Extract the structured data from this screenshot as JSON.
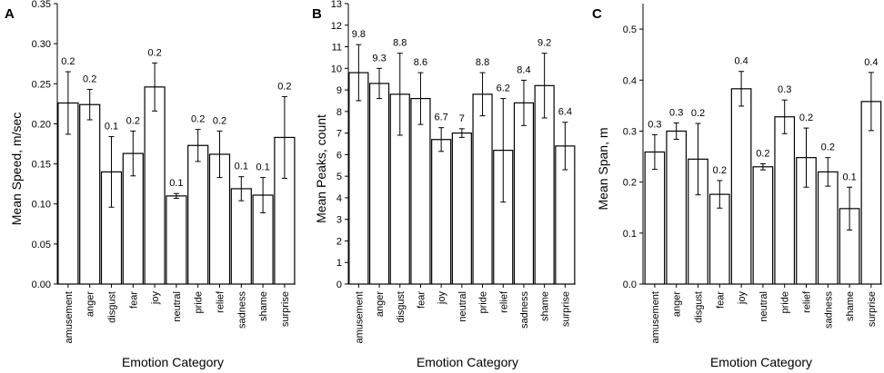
{
  "chart_data": [
    {
      "type": "bar",
      "panel_label": "A",
      "title": "",
      "xlabel": "Emotion Category",
      "ylabel": "Mean Speed, m/sec",
      "ylim": [
        0,
        0.35
      ],
      "yticks": [
        "0.00",
        "0.05",
        "0.10",
        "0.15",
        "0.20",
        "0.25",
        "0.30",
        "0.35"
      ],
      "ytick_values": [
        0,
        0.05,
        0.1,
        0.15,
        0.2,
        0.25,
        0.3,
        0.35
      ],
      "grid": false,
      "categories": [
        "amusement",
        "anger",
        "disgust",
        "fear",
        "joy",
        "neutral",
        "pride",
        "relief",
        "sadness",
        "shame",
        "surprise"
      ],
      "values": [
        0.226,
        0.224,
        0.14,
        0.163,
        0.246,
        0.11,
        0.173,
        0.162,
        0.119,
        0.111,
        0.183
      ],
      "errors": [
        0.039,
        0.019,
        0.044,
        0.028,
        0.03,
        0.003,
        0.02,
        0.029,
        0.015,
        0.022,
        0.051
      ],
      "data_labels": [
        "0.2",
        "0.2",
        "0.1",
        "0.2",
        "0.2",
        "0.1",
        "0.2",
        "0.2",
        "0.1",
        "0.1",
        "0.2"
      ]
    },
    {
      "type": "bar",
      "panel_label": "B",
      "title": "",
      "xlabel": "Emotion Category",
      "ylabel": "Mean Peaks, count",
      "ylim": [
        0,
        13
      ],
      "yticks": [
        "0",
        "1",
        "2",
        "3",
        "4",
        "5",
        "6",
        "7",
        "8",
        "9",
        "10",
        "11",
        "12",
        "13"
      ],
      "ytick_values": [
        0,
        1,
        2,
        3,
        4,
        5,
        6,
        7,
        8,
        9,
        10,
        11,
        12,
        13
      ],
      "grid": false,
      "categories": [
        "amusement",
        "anger",
        "disgust",
        "fear",
        "joy",
        "neutral",
        "pride",
        "relief",
        "sadness",
        "shame",
        "surprise"
      ],
      "values": [
        9.8,
        9.3,
        8.8,
        8.6,
        6.7,
        7.0,
        8.8,
        6.2,
        8.4,
        9.2,
        6.4
      ],
      "errors": [
        1.3,
        0.7,
        1.9,
        1.2,
        0.55,
        0.2,
        1.0,
        2.4,
        1.05,
        1.5,
        1.1
      ],
      "data_labels": [
        "9.8",
        "9.3",
        "8.8",
        "8.6",
        "6.7",
        "7",
        "8.8",
        "6.2",
        "8.4",
        "9.2",
        "6.4"
      ]
    },
    {
      "type": "bar",
      "panel_label": "C",
      "title": "",
      "xlabel": "Emotion Category",
      "ylabel": "Mean Span, m",
      "ylim": [
        0,
        0.55
      ],
      "yticks": [
        "0.0",
        "0.1",
        "0.2",
        "0.3",
        "0.4",
        "0.5"
      ],
      "ytick_values": [
        0,
        0.1,
        0.2,
        0.3,
        0.4,
        0.5
      ],
      "grid": false,
      "categories": [
        "amusement",
        "anger",
        "disgust",
        "fear",
        "joy",
        "neutral",
        "pride",
        "relief",
        "sadness",
        "shame",
        "surprise"
      ],
      "values": [
        0.259,
        0.3,
        0.245,
        0.176,
        0.383,
        0.23,
        0.328,
        0.248,
        0.22,
        0.148,
        0.358
      ],
      "errors": [
        0.034,
        0.016,
        0.07,
        0.027,
        0.034,
        0.006,
        0.033,
        0.058,
        0.028,
        0.042,
        0.057
      ],
      "data_labels": [
        "0.3",
        "0.3",
        "0.2",
        "0.2",
        "0.4",
        "0.2",
        "0.3",
        "0.2",
        "0.2",
        "0.1",
        "0.4"
      ]
    }
  ]
}
